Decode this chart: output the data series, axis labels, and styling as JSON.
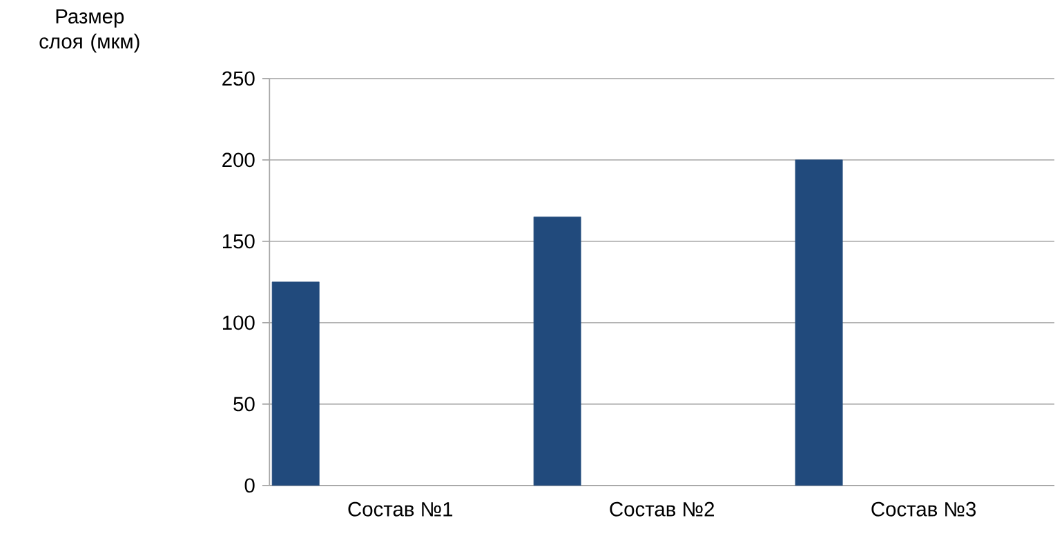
{
  "chart_data": {
    "type": "bar",
    "ylabel": "Размер слоя (мкм)",
    "categories": [
      "Состав №1",
      "Состав №2",
      "Состав №3"
    ],
    "values": [
      125,
      165,
      200
    ],
    "color": "#214a7c",
    "ylim": [
      0,
      250
    ],
    "yticks": [
      0,
      50,
      100,
      150,
      200,
      250
    ],
    "grid": "y"
  }
}
